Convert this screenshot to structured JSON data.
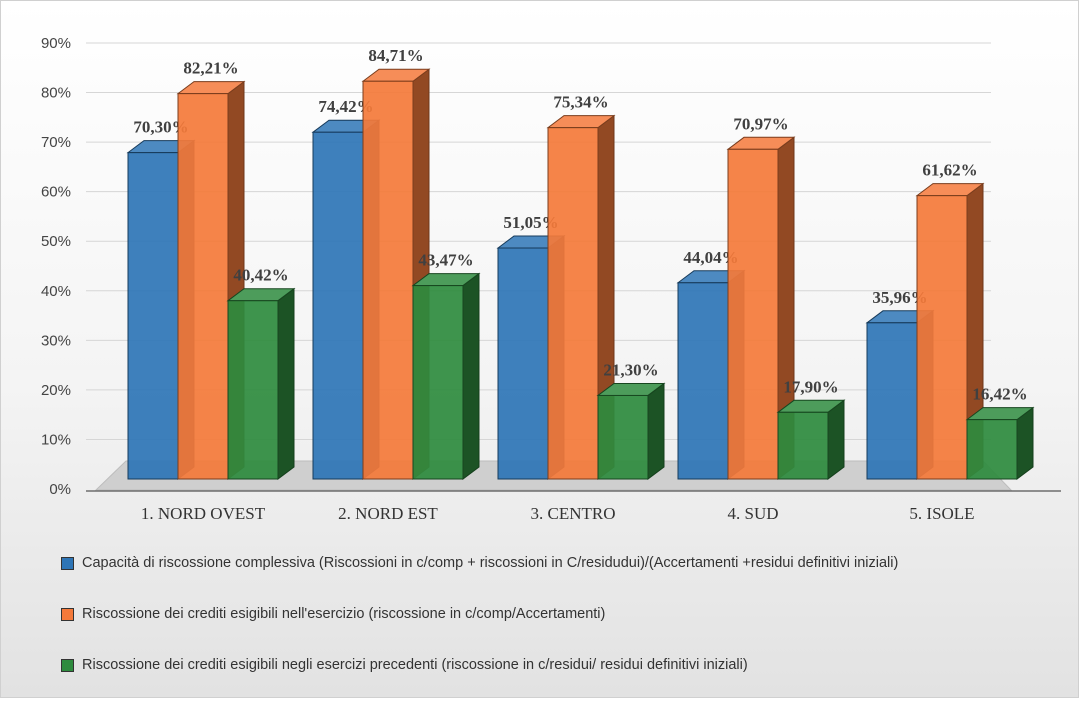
{
  "chart_data": {
    "type": "bar",
    "categories": [
      "1. NORD OVEST",
      "2. NORD EST",
      "3. CENTRO",
      "4. SUD",
      "5. ISOLE"
    ],
    "series": [
      {
        "name": "Capacità di riscossione complessiva (Riscossioni in c/comp + riscossioni in C/residudui)/(Accertamenti +residui definitivi iniziali)",
        "values": [
          70.3,
          74.42,
          51.05,
          44.04,
          35.96
        ],
        "labels": [
          "70,30%",
          "74,42%",
          "51,05%",
          "44,04%",
          "35,96%"
        ],
        "color": "#2e75b6"
      },
      {
        "name": "Riscossione dei crediti esigibili nell'esercizio (riscossione in c/comp/Accertamenti)",
        "values": [
          82.21,
          84.71,
          75.34,
          70.97,
          61.62
        ],
        "labels": [
          "82,21%",
          "84,71%",
          "75,34%",
          "70,97%",
          "61,62%"
        ],
        "color": "#f4793a"
      },
      {
        "name": "Riscossione dei crediti esigibili negli esercizi precedenti (riscossione in c/residui/ residui definitivi iniziali)",
        "values": [
          40.42,
          43.47,
          21.3,
          17.9,
          16.42
        ],
        "labels": [
          "40,42%",
          "43,47%",
          "21,30%",
          "17,90%",
          "16,42%"
        ],
        "color": "#2e8b3e"
      }
    ],
    "y_ticks": [
      "0%",
      "10%",
      "20%",
      "30%",
      "40%",
      "50%",
      "60%",
      "70%",
      "80%",
      "90%"
    ],
    "ylim": [
      0,
      90
    ],
    "grid": true,
    "legend_position": "bottom",
    "style": "3d-clustered-column"
  }
}
